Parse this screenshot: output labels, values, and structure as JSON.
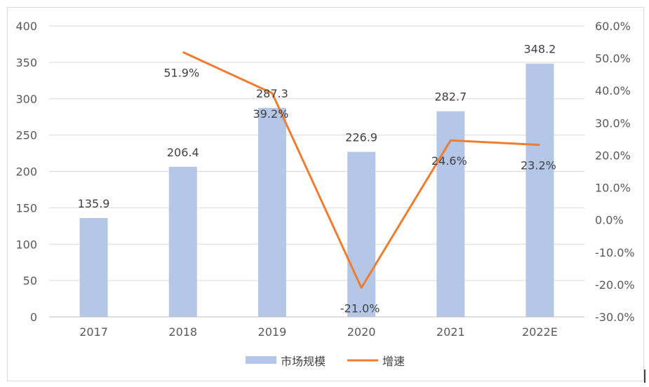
{
  "chart_data": {
    "type": "bar",
    "categories": [
      "2017",
      "2018",
      "2019",
      "2020",
      "2021",
      "2022E"
    ],
    "series": [
      {
        "name": "市场规模",
        "type": "bar",
        "axis": "left",
        "values": [
          135.9,
          206.4,
          287.3,
          226.9,
          282.7,
          348.2
        ],
        "labels": [
          "135.9",
          "206.4",
          "287.3",
          "226.9",
          "282.7",
          "348.2"
        ],
        "color": "#b4c7e7"
      },
      {
        "name": "增速",
        "type": "line",
        "axis": "right",
        "values": [
          null,
          51.9,
          39.2,
          -21.0,
          24.6,
          23.2
        ],
        "labels": [
          null,
          "51.9%",
          "39.2%",
          "-21.0%",
          "24.6%",
          "23.2%"
        ],
        "color": "#ed7d31"
      }
    ],
    "y_left": {
      "range": [
        0,
        400
      ],
      "ticks": [
        "0",
        "50",
        "100",
        "150",
        "200",
        "250",
        "300",
        "350",
        "400"
      ]
    },
    "y_right": {
      "range": [
        -30,
        60
      ],
      "ticks": [
        "-30.0%",
        "-20.0%",
        "-10.0%",
        "0.0%",
        "10.0%",
        "20.0%",
        "30.0%",
        "40.0%",
        "50.0%",
        "60.0%"
      ]
    },
    "grid": true,
    "legend_position": "bottom"
  }
}
